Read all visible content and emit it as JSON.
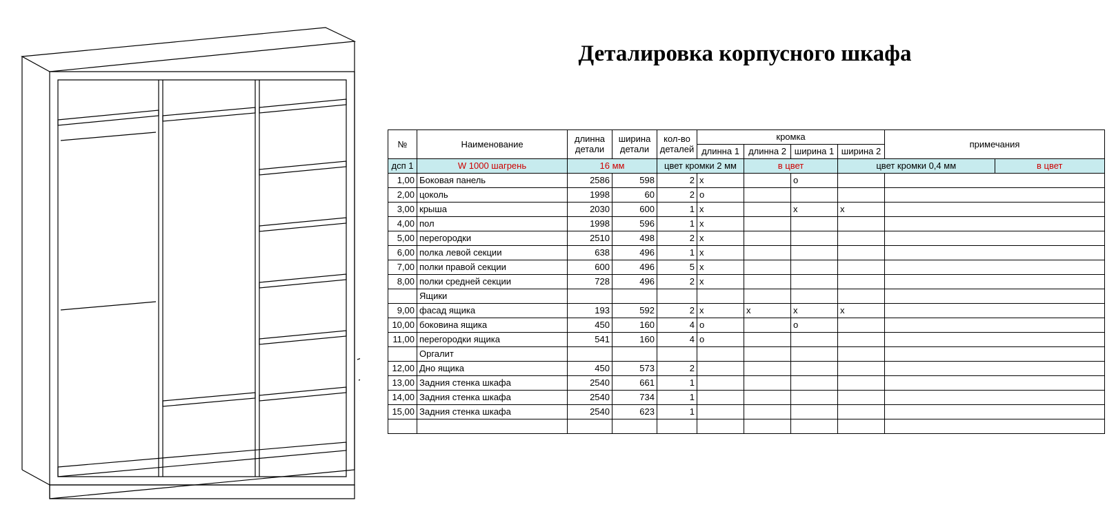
{
  "title": "Деталировка корпусного шкафа",
  "table": {
    "header": {
      "num": "№",
      "name": "Наименование",
      "len": "длинна\nдетали",
      "wid": "ширина\nдетали",
      "qty": "кол-во\nдеталей",
      "edge_group": "кромка",
      "d1": "длинна 1",
      "d2": "длинна 2",
      "w1": "ширина 1",
      "w2": "ширина 2",
      "notes": "примечания"
    },
    "material_row": {
      "label": "дсп 1",
      "material": "W 1000 шагрень",
      "thickness": "16 мм",
      "edge2mm": "цвет кромки 2 мм",
      "color": "в цвет",
      "edge04mm": "цвет кромки 0,4 мм",
      "color2": "в цвет"
    },
    "rows": [
      {
        "num": "1,00",
        "name": "Боковая панель",
        "len": "2586",
        "wid": "598",
        "qty": "2",
        "d1": "x",
        "d2": "",
        "w1": "o",
        "w2": ""
      },
      {
        "num": "2,00",
        "name": "цоколь",
        "len": "1998",
        "wid": "60",
        "qty": "2",
        "d1": "o",
        "d2": "",
        "w1": "",
        "w2": ""
      },
      {
        "num": "3,00",
        "name": "крыша",
        "len": "2030",
        "wid": "600",
        "qty": "1",
        "d1": "x",
        "d2": "",
        "w1": "x",
        "w2": "x"
      },
      {
        "num": "4,00",
        "name": "пол",
        "len": "1998",
        "wid": "596",
        "qty": "1",
        "d1": "x",
        "d2": "",
        "w1": "",
        "w2": ""
      },
      {
        "num": "5,00",
        "name": "перегородки",
        "len": "2510",
        "wid": "498",
        "qty": "2",
        "d1": "x",
        "d2": "",
        "w1": "",
        "w2": ""
      },
      {
        "num": "6,00",
        "name": "полка левой секции",
        "len": "638",
        "wid": "496",
        "qty": "1",
        "d1": "x",
        "d2": "",
        "w1": "",
        "w2": ""
      },
      {
        "num": "7,00",
        "name": "полки  правой секции",
        "len": "600",
        "wid": "496",
        "qty": "5",
        "d1": "x",
        "d2": "",
        "w1": "",
        "w2": ""
      },
      {
        "num": "8,00",
        "name": "полки средней секции",
        "len": "728",
        "wid": "496",
        "qty": "2",
        "d1": "x",
        "d2": "",
        "w1": "",
        "w2": ""
      },
      {
        "num": "",
        "name": "Ящики",
        "len": "",
        "wid": "",
        "qty": "",
        "d1": "",
        "d2": "",
        "w1": "",
        "w2": ""
      },
      {
        "num": "9,00",
        "name": "фасад ящика",
        "len": "193",
        "wid": "592",
        "qty": "2",
        "d1": "x",
        "d2": "x",
        "w1": "x",
        "w2": "x"
      },
      {
        "num": "10,00",
        "name": "боковина ящика",
        "len": "450",
        "wid": "160",
        "qty": "4",
        "d1": "o",
        "d2": "",
        "w1": "o",
        "w2": ""
      },
      {
        "num": "11,00",
        "name": "перегородки ящика",
        "len": "541",
        "wid": "160",
        "qty": "4",
        "d1": "o",
        "d2": "",
        "w1": "",
        "w2": ""
      },
      {
        "num": "",
        "name": "Оргалит",
        "len": "",
        "wid": "",
        "qty": "",
        "d1": "",
        "d2": "",
        "w1": "",
        "w2": ""
      },
      {
        "num": "12,00",
        "name": "Дно ящика",
        "len": "450",
        "wid": "573",
        "qty": "2",
        "d1": "",
        "d2": "",
        "w1": "",
        "w2": ""
      },
      {
        "num": "13,00",
        "name": "Задния стенка шкафа",
        "len": "2540",
        "wid": "661",
        "qty": "1",
        "d1": "",
        "d2": "",
        "w1": "",
        "w2": ""
      },
      {
        "num": "14,00",
        "name": "Задния стенка шкафа",
        "len": "2540",
        "wid": "734",
        "qty": "1",
        "d1": "",
        "d2": "",
        "w1": "",
        "w2": ""
      },
      {
        "num": "15,00",
        "name": "Задния стенка шкафа",
        "len": "2540",
        "wid": "623",
        "qty": "1",
        "d1": "",
        "d2": "",
        "w1": "",
        "w2": ""
      },
      {
        "num": "",
        "name": "",
        "len": "",
        "wid": "",
        "qty": "",
        "d1": "",
        "d2": "",
        "w1": "",
        "w2": ""
      }
    ]
  },
  "colors": {
    "material_bg": "#c7ebee",
    "material_red": "#cc0000"
  }
}
